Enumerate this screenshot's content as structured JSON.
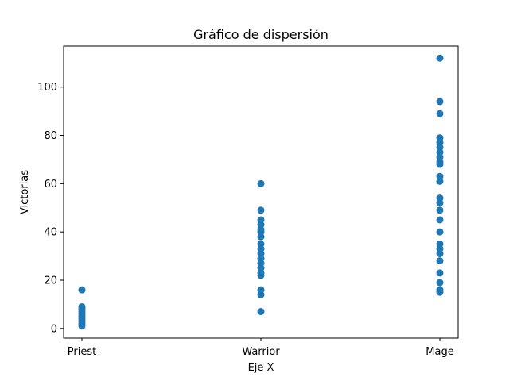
{
  "chart_data": {
    "type": "scatter",
    "title": "Gráfico de dispersión",
    "xlabel": "Eje X",
    "ylabel": "Victorias",
    "categories": [
      "Priest",
      "Warrior",
      "Mage"
    ],
    "yticks": [
      0,
      20,
      40,
      60,
      80,
      100
    ],
    "ylim": [
      -4,
      117
    ],
    "grid": false,
    "marker_color": "#1f77b4",
    "series": [
      {
        "points": [
          {
            "x": "Priest",
            "y": 16
          },
          {
            "x": "Priest",
            "y": 9
          },
          {
            "x": "Priest",
            "y": 8
          },
          {
            "x": "Priest",
            "y": 7
          },
          {
            "x": "Priest",
            "y": 6
          },
          {
            "x": "Priest",
            "y": 5
          },
          {
            "x": "Priest",
            "y": 4
          },
          {
            "x": "Priest",
            "y": 3
          },
          {
            "x": "Priest",
            "y": 2
          },
          {
            "x": "Priest",
            "y": 1
          },
          {
            "x": "Warrior",
            "y": 60
          },
          {
            "x": "Warrior",
            "y": 49
          },
          {
            "x": "Warrior",
            "y": 45
          },
          {
            "x": "Warrior",
            "y": 43
          },
          {
            "x": "Warrior",
            "y": 41
          },
          {
            "x": "Warrior",
            "y": 40
          },
          {
            "x": "Warrior",
            "y": 38
          },
          {
            "x": "Warrior",
            "y": 35
          },
          {
            "x": "Warrior",
            "y": 33
          },
          {
            "x": "Warrior",
            "y": 31
          },
          {
            "x": "Warrior",
            "y": 29
          },
          {
            "x": "Warrior",
            "y": 27
          },
          {
            "x": "Warrior",
            "y": 25
          },
          {
            "x": "Warrior",
            "y": 23
          },
          {
            "x": "Warrior",
            "y": 22
          },
          {
            "x": "Warrior",
            "y": 16
          },
          {
            "x": "Warrior",
            "y": 14
          },
          {
            "x": "Warrior",
            "y": 7
          },
          {
            "x": "Mage",
            "y": 112
          },
          {
            "x": "Mage",
            "y": 94
          },
          {
            "x": "Mage",
            "y": 89
          },
          {
            "x": "Mage",
            "y": 79
          },
          {
            "x": "Mage",
            "y": 77
          },
          {
            "x": "Mage",
            "y": 75
          },
          {
            "x": "Mage",
            "y": 73
          },
          {
            "x": "Mage",
            "y": 71
          },
          {
            "x": "Mage",
            "y": 69
          },
          {
            "x": "Mage",
            "y": 68
          },
          {
            "x": "Mage",
            "y": 63
          },
          {
            "x": "Mage",
            "y": 61
          },
          {
            "x": "Mage",
            "y": 54
          },
          {
            "x": "Mage",
            "y": 52
          },
          {
            "x": "Mage",
            "y": 49
          },
          {
            "x": "Mage",
            "y": 45
          },
          {
            "x": "Mage",
            "y": 40
          },
          {
            "x": "Mage",
            "y": 35
          },
          {
            "x": "Mage",
            "y": 33
          },
          {
            "x": "Mage",
            "y": 31
          },
          {
            "x": "Mage",
            "y": 28
          },
          {
            "x": "Mage",
            "y": 23
          },
          {
            "x": "Mage",
            "y": 19
          },
          {
            "x": "Mage",
            "y": 16
          },
          {
            "x": "Mage",
            "y": 15
          }
        ]
      }
    ]
  }
}
